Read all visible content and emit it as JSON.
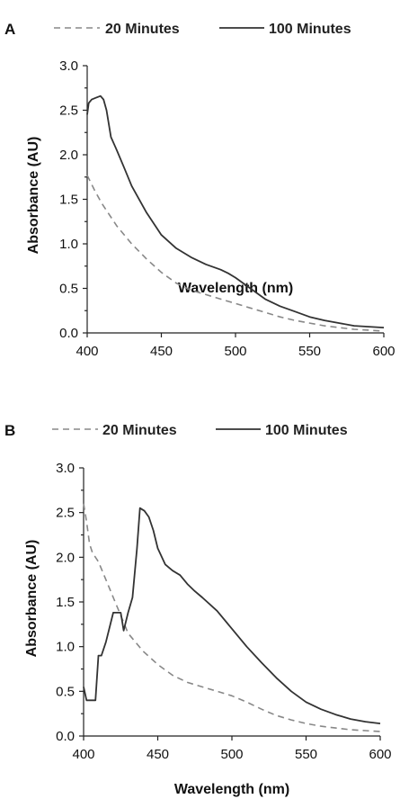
{
  "chart_data": [
    {
      "panel": "A",
      "type": "line",
      "xlabel": "Wavelength (nm)",
      "ylabel": "Absorbance (AU)",
      "xlim": [
        400,
        600
      ],
      "ylim": [
        0,
        3
      ],
      "xticks": [
        "400",
        "450",
        "500",
        "550",
        "600"
      ],
      "yticks": [
        "0.0",
        "0.5",
        "1.0",
        "1.5",
        "2.0",
        "2.5",
        "3.0"
      ],
      "legend_position": "top",
      "series": [
        {
          "name": "20 Minutes",
          "style": "dashed",
          "color": "#888888",
          "x": [
            400,
            405,
            410,
            420,
            430,
            440,
            450,
            460,
            470,
            480,
            490,
            500,
            510,
            520,
            530,
            540,
            550,
            560,
            570,
            580,
            590,
            600
          ],
          "y": [
            1.77,
            1.6,
            1.45,
            1.2,
            1.0,
            0.83,
            0.68,
            0.56,
            0.48,
            0.43,
            0.38,
            0.33,
            0.28,
            0.23,
            0.18,
            0.14,
            0.11,
            0.08,
            0.06,
            0.04,
            0.03,
            0.02
          ]
        },
        {
          "name": "100 Minutes",
          "style": "solid",
          "color": "#333333",
          "x": [
            400,
            401,
            403,
            406,
            409,
            411,
            413,
            416,
            420,
            425,
            430,
            440,
            450,
            460,
            470,
            480,
            490,
            495,
            500,
            510,
            520,
            530,
            540,
            550,
            560,
            570,
            580,
            590,
            600
          ],
          "y": [
            2.45,
            2.58,
            2.62,
            2.64,
            2.66,
            2.62,
            2.5,
            2.2,
            2.05,
            1.85,
            1.65,
            1.35,
            1.1,
            0.95,
            0.85,
            0.77,
            0.71,
            0.67,
            0.62,
            0.5,
            0.38,
            0.3,
            0.24,
            0.18,
            0.14,
            0.11,
            0.08,
            0.07,
            0.06
          ]
        }
      ]
    },
    {
      "panel": "B",
      "type": "line",
      "xlabel": "Wavelength (nm)",
      "ylabel": "Absorbance (AU)",
      "xlim": [
        400,
        600
      ],
      "ylim": [
        0,
        3
      ],
      "xticks": [
        "400",
        "450",
        "500",
        "550",
        "600"
      ],
      "yticks": [
        "0.0",
        "0.5",
        "1.0",
        "1.5",
        "2.0",
        "2.5",
        "3.0"
      ],
      "legend_position": "top",
      "series": [
        {
          "name": "20 Minutes",
          "style": "dashed",
          "color": "#888888",
          "x": [
            400,
            402,
            404,
            406,
            410,
            415,
            420,
            425,
            430,
            440,
            450,
            460,
            470,
            480,
            490,
            500,
            510,
            520,
            530,
            540,
            550,
            560,
            570,
            580,
            590,
            600
          ],
          "y": [
            2.6,
            2.4,
            2.15,
            2.05,
            1.95,
            1.75,
            1.55,
            1.35,
            1.15,
            0.95,
            0.8,
            0.68,
            0.6,
            0.55,
            0.5,
            0.45,
            0.38,
            0.3,
            0.23,
            0.18,
            0.14,
            0.11,
            0.09,
            0.07,
            0.06,
            0.05
          ]
        },
        {
          "name": "100 Minutes",
          "style": "solid",
          "color": "#333333",
          "x": [
            400,
            402,
            405,
            408,
            410,
            412,
            415,
            420,
            422,
            425,
            427,
            430,
            433,
            436,
            438,
            441,
            444,
            447,
            450,
            455,
            460,
            465,
            470,
            475,
            480,
            490,
            500,
            510,
            520,
            530,
            540,
            550,
            560,
            570,
            580,
            590,
            600
          ],
          "y": [
            0.55,
            0.4,
            0.4,
            0.4,
            0.9,
            0.9,
            1.05,
            1.38,
            1.38,
            1.38,
            1.18,
            1.38,
            1.55,
            2.1,
            2.55,
            2.52,
            2.45,
            2.3,
            2.1,
            1.92,
            1.85,
            1.8,
            1.7,
            1.62,
            1.55,
            1.4,
            1.2,
            1.0,
            0.82,
            0.65,
            0.5,
            0.38,
            0.3,
            0.24,
            0.19,
            0.16,
            0.14
          ]
        }
      ]
    }
  ]
}
